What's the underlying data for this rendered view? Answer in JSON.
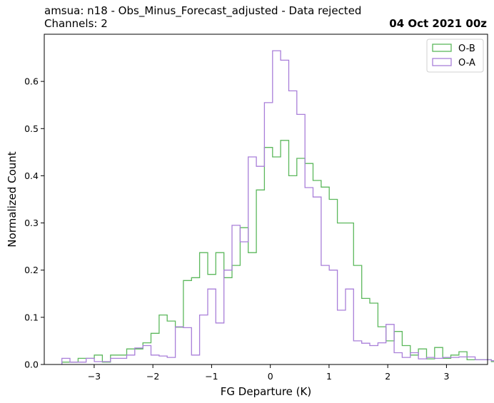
{
  "header": {
    "title_line1": "amsua: n18 - Obs_Minus_Forecast_adjusted - Data rejected",
    "title_line2": "Channels: 2",
    "date": "04 Oct 2021 00z"
  },
  "chart_data": {
    "type": "step-histogram",
    "xlabel": "FG Departure (K)",
    "ylabel": "Normalized Count",
    "xlim": [
      -3.85,
      3.7
    ],
    "ylim": [
      0,
      0.7
    ],
    "xticks": [
      -3,
      -2,
      -1,
      0,
      1,
      2,
      3
    ],
    "xtick_labels": [
      "−3",
      "−2",
      "−1",
      "0",
      "1",
      "2",
      "3"
    ],
    "yticks": [
      0.0,
      0.1,
      0.2,
      0.3,
      0.4,
      0.5,
      0.6
    ],
    "ytick_labels": [
      "0.0",
      "0.1",
      "0.2",
      "0.3",
      "0.4",
      "0.5",
      "0.6"
    ],
    "legend_position": "upper right",
    "grid": false,
    "bin_width": 0.138,
    "series": [
      {
        "name": "O-B",
        "color": "#5cb85c",
        "bin_start": -3.55,
        "values": [
          0.005,
          0.005,
          0.013,
          0.013,
          0.02,
          0.005,
          0.02,
          0.02,
          0.033,
          0.033,
          0.046,
          0.066,
          0.105,
          0.092,
          0.079,
          0.178,
          0.184,
          0.237,
          0.191,
          0.237,
          0.184,
          0.21,
          0.29,
          0.237,
          0.37,
          0.46,
          0.44,
          0.475,
          0.4,
          0.437,
          0.426,
          0.39,
          0.376,
          0.35,
          0.3,
          0.3,
          0.21,
          0.14,
          0.13,
          0.08,
          0.05,
          0.07,
          0.04,
          0.02,
          0.033,
          0.012,
          0.036,
          0.013,
          0.02,
          0.027,
          0.01,
          0.01,
          0.01,
          0.006,
          0.006,
          0.006,
          0.02,
          0.005
        ]
      },
      {
        "name": "O-A",
        "color": "#a97fd9",
        "bin_start": -3.55,
        "values": [
          0.013,
          0.005,
          0.005,
          0.013,
          0.006,
          0.006,
          0.013,
          0.013,
          0.02,
          0.035,
          0.04,
          0.02,
          0.018,
          0.015,
          0.08,
          0.078,
          0.02,
          0.105,
          0.16,
          0.088,
          0.2,
          0.295,
          0.26,
          0.44,
          0.42,
          0.555,
          0.665,
          0.645,
          0.58,
          0.53,
          0.375,
          0.355,
          0.21,
          0.2,
          0.115,
          0.16,
          0.05,
          0.045,
          0.04,
          0.046,
          0.085,
          0.025,
          0.015,
          0.025,
          0.012,
          0.015,
          0.013,
          0.015,
          0.015,
          0.016,
          0.016,
          0.01,
          0.01,
          0.008,
          0.005,
          0.005,
          0.015
        ]
      }
    ]
  }
}
